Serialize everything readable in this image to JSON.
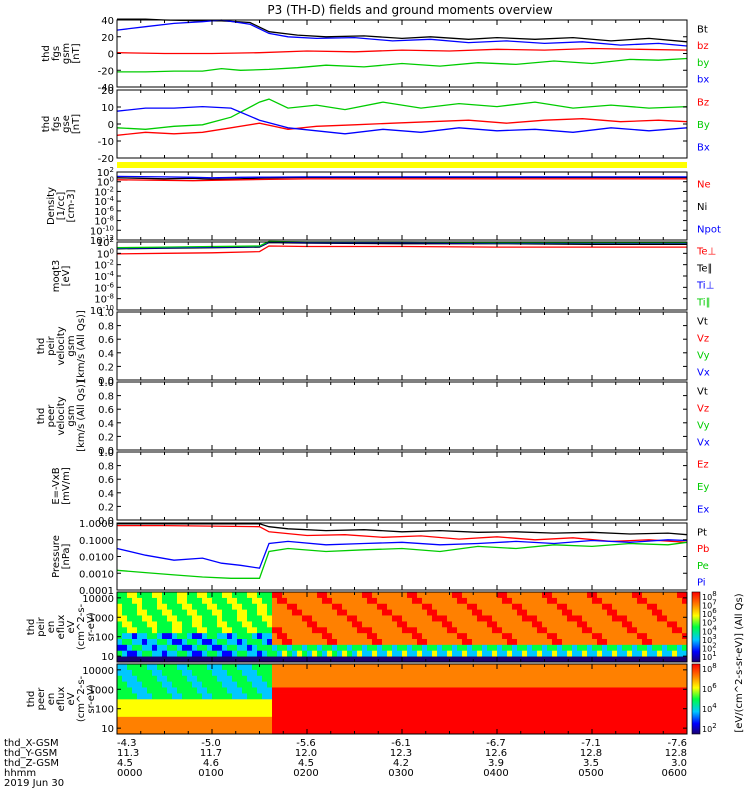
{
  "title": "P3 (TH-D) fields and ground moments overview",
  "chart_data": [
    {
      "id": "fgs_gsm_mag",
      "type": "line",
      "ylabel": [
        "thd",
        "fgs",
        "gsm",
        "[nT]"
      ],
      "ylim": [
        -40,
        40
      ],
      "yticks": [
        "40",
        "20",
        "0",
        "-20",
        "-40"
      ],
      "legend": [
        {
          "name": "Bt",
          "color": "#000000"
        },
        {
          "name": "bz",
          "color": "#ff0000"
        },
        {
          "name": "by",
          "color": "#00cc00"
        },
        {
          "name": "bx",
          "color": "#0000ff"
        }
      ],
      "series": [
        {
          "name": "Bt",
          "color": "#000000",
          "x": [
            0,
            0.3,
            0.5,
            0.9,
            1.1,
            1.4,
            1.6,
            1.9,
            2.2,
            2.6,
            3.0,
            3.3,
            3.7,
            4.0,
            4.4,
            4.8,
            5.2,
            5.6,
            6.0
          ],
          "y": [
            41,
            41,
            40,
            39,
            39,
            37,
            26,
            22,
            20,
            21,
            18,
            20,
            17,
            19,
            17,
            19,
            15,
            18,
            14
          ]
        },
        {
          "name": "bz",
          "color": "#ff0000",
          "x": [
            0,
            0.5,
            1.0,
            1.5,
            2.0,
            2.5,
            3.0,
            3.5,
            4.0,
            4.5,
            5.0,
            5.5,
            6.0
          ],
          "y": [
            1,
            0,
            0,
            1,
            3,
            2,
            4,
            3,
            5,
            4,
            6,
            5,
            4
          ]
        },
        {
          "name": "by",
          "color": "#00cc00",
          "x": [
            0,
            0.3,
            0.6,
            0.9,
            1.1,
            1.3,
            1.6,
            1.9,
            2.2,
            2.6,
            3.0,
            3.4,
            3.8,
            4.2,
            4.6,
            5.0,
            5.4,
            5.7,
            6.0
          ],
          "y": [
            -22,
            -22,
            -21,
            -21,
            -18,
            -20,
            -19,
            -17,
            -14,
            -16,
            -12,
            -15,
            -11,
            -13,
            -9,
            -12,
            -7,
            -8,
            -6
          ]
        },
        {
          "name": "bx",
          "color": "#0000ff",
          "x": [
            0,
            0.3,
            0.6,
            0.9,
            1.1,
            1.4,
            1.6,
            1.8,
            2.1,
            2.5,
            2.9,
            3.3,
            3.7,
            4.1,
            4.5,
            4.9,
            5.3,
            5.7,
            6.0
          ],
          "y": [
            28,
            32,
            36,
            38,
            40,
            35,
            24,
            20,
            18,
            19,
            15,
            17,
            13,
            15,
            12,
            14,
            10,
            12,
            9
          ]
        }
      ]
    },
    {
      "id": "fgs_gse",
      "type": "line",
      "ylabel": [
        "thd",
        "fgs",
        "gse",
        "[nT]"
      ],
      "ylim": [
        -25,
        20
      ],
      "yticks": [
        "20",
        "10",
        "0",
        "-10",
        "-20"
      ],
      "legend": [
        {
          "name": "Bz",
          "color": "#ff0000"
        },
        {
          "name": "By",
          "color": "#00cc00"
        },
        {
          "name": "Bx",
          "color": "#0000ff"
        }
      ],
      "series": [
        {
          "name": "Bz",
          "color": "#ff0000",
          "x": [
            0,
            0.3,
            0.6,
            0.9,
            1.2,
            1.5,
            1.8,
            2.1,
            2.5,
            2.9,
            3.3,
            3.7,
            4.1,
            4.5,
            4.9,
            5.3,
            5.7,
            6.0
          ],
          "y": [
            -10,
            -8,
            -9,
            -8,
            -5,
            -2,
            -6,
            -4,
            -3,
            -2,
            -1,
            0,
            -2,
            0,
            1,
            -1,
            0,
            -1
          ]
        },
        {
          "name": "By",
          "color": "#00cc00",
          "x": [
            0,
            0.3,
            0.6,
            0.9,
            1.2,
            1.5,
            1.6,
            1.8,
            2.1,
            2.4,
            2.8,
            3.2,
            3.6,
            4.0,
            4.4,
            4.8,
            5.2,
            5.6,
            6.0
          ],
          "y": [
            -5,
            -6,
            -4,
            -3,
            2,
            12,
            14,
            8,
            10,
            7,
            12,
            8,
            11,
            9,
            12,
            8,
            10,
            8,
            9
          ]
        },
        {
          "name": "Bx",
          "color": "#0000ff",
          "x": [
            0,
            0.3,
            0.6,
            0.9,
            1.2,
            1.5,
            1.8,
            2.1,
            2.4,
            2.8,
            3.2,
            3.6,
            4.0,
            4.4,
            4.8,
            5.2,
            5.6,
            6.0
          ],
          "y": [
            6,
            8,
            8,
            9,
            8,
            0,
            -5,
            -7,
            -9,
            -6,
            -8,
            -5,
            -7,
            -6,
            -8,
            -5,
            -7,
            -5
          ]
        }
      ]
    },
    {
      "id": "density",
      "type": "line",
      "ylabel": [
        "Density",
        "[1/cc]",
        "[cm-3]"
      ],
      "log": true,
      "yticks": [
        "10^2",
        "10^0",
        "10^-2",
        "10^-4",
        "10^-6",
        "10^-8",
        "10^-10",
        "10^-12"
      ],
      "legend": [
        {
          "name": "Ne",
          "color": "#ff0000"
        },
        {
          "name": "Ni",
          "color": "#000000"
        },
        {
          "name": "Npot",
          "color": "#0000ff"
        }
      ],
      "series": [
        {
          "name": "Ni",
          "color": "#000000",
          "x": [
            0,
            0.5,
            0.8,
            1.0,
            1.3,
            1.6,
            2.0,
            3.0,
            4.0,
            5.0,
            6.0
          ],
          "y": [
            0.8,
            0.6,
            0.7,
            0.5,
            0.6,
            0.8,
            0.9,
            0.9,
            0.9,
            0.9,
            0.9
          ]
        },
        {
          "name": "Ne",
          "color": "#ff0000",
          "x": [
            0,
            0.5,
            0.8,
            1.0,
            1.3,
            1.6,
            2.0,
            3.0,
            4.0,
            5.0,
            6.0
          ],
          "y": [
            0.4,
            0.3,
            0.2,
            0.3,
            0.4,
            0.5,
            0.6,
            0.6,
            0.6,
            0.6,
            0.6
          ]
        },
        {
          "name": "Npot",
          "color": "#0000ff",
          "x": [
            0,
            0.5,
            0.8,
            1.0,
            1.3,
            1.6,
            2.0,
            3.0,
            4.0,
            5.0,
            6.0
          ],
          "y": [
            1.1,
            1.0,
            0.9,
            0.8,
            0.9,
            0.95,
            1.0,
            1.0,
            1.0,
            1.0,
            1.0
          ]
        }
      ]
    },
    {
      "id": "temperature",
      "type": "line",
      "ylabel": [
        "moqt3",
        "[eV]"
      ],
      "log": true,
      "yticks": [
        "10^2",
        "10^0",
        "10^-2",
        "10^-4",
        "10^-6",
        "10^-8",
        "10^-10"
      ],
      "legend": [
        {
          "name": "Te⊥",
          "color": "#ff0000"
        },
        {
          "name": "Te∥",
          "color": "#000000"
        },
        {
          "name": "Ti⊥",
          "color": "#0000ff"
        },
        {
          "name": "Ti∥",
          "color": "#00cc00"
        }
      ],
      "series": [
        {
          "name": "Te∥",
          "color": "#000000",
          "x": [
            0,
            0.5,
            1.0,
            1.5,
            1.6,
            2.0,
            3.0,
            4.0,
            5.0,
            6.0
          ],
          "y": [
            0.8,
            0.9,
            1.0,
            1.1,
            1.9,
            1.8,
            1.7,
            1.7,
            1.6,
            1.6
          ]
        },
        {
          "name": "Te⊥",
          "color": "#ff0000",
          "x": [
            0,
            0.5,
            1.0,
            1.5,
            1.6,
            2.0,
            3.0,
            4.0,
            5.0,
            6.0
          ],
          "y": [
            -0.1,
            0.0,
            0.1,
            0.3,
            1.3,
            1.2,
            1.2,
            1.1,
            1.1,
            1.1
          ]
        },
        {
          "name": "Ti⊥",
          "color": "#0000ff",
          "x": [
            0,
            0.5,
            1.0,
            1.5,
            1.6,
            2.0,
            3.0,
            4.0,
            5.0,
            6.0
          ],
          "y": [
            0.9,
            1.0,
            1.1,
            1.2,
            2.0,
            1.9,
            1.9,
            1.8,
            1.8,
            1.8
          ]
        },
        {
          "name": "Ti∥",
          "color": "#00cc00",
          "x": [
            0,
            0.5,
            1.0,
            1.5,
            1.6,
            2.0,
            3.0,
            4.0,
            5.0,
            6.0
          ],
          "y": [
            1.0,
            1.1,
            1.2,
            1.3,
            2.1,
            2.0,
            2.0,
            1.9,
            1.9,
            1.9
          ]
        }
      ]
    },
    {
      "id": "peir_velocity",
      "type": "line",
      "ylabel": [
        "thd",
        "peir",
        "velocity",
        "gsm",
        "[km/s (All Qs)]"
      ],
      "ylim": [
        0,
        1
      ],
      "yticks": [
        "1.0",
        "0.8",
        "0.6",
        "0.4",
        "0.2",
        "0.0"
      ],
      "legend": [
        {
          "name": "Vt",
          "color": "#000000"
        },
        {
          "name": "Vz",
          "color": "#ff0000"
        },
        {
          "name": "Vy",
          "color": "#00cc00"
        },
        {
          "name": "Vx",
          "color": "#0000ff"
        }
      ],
      "series": []
    },
    {
      "id": "peer_velocity",
      "type": "line",
      "ylabel": [
        "thd",
        "peer",
        "velocity",
        "gsm",
        "[km/s (All Qs)]"
      ],
      "ylim": [
        0,
        1
      ],
      "yticks": [
        "1.0",
        "0.8",
        "0.6",
        "0.4",
        "0.2",
        "0.0"
      ],
      "legend": [
        {
          "name": "Vt",
          "color": "#000000"
        },
        {
          "name": "Vz",
          "color": "#ff0000"
        },
        {
          "name": "Vy",
          "color": "#00cc00"
        },
        {
          "name": "Vx",
          "color": "#0000ff"
        }
      ],
      "series": []
    },
    {
      "id": "efield",
      "type": "line",
      "ylabel": [
        "E=-VxB",
        "[mV/m]"
      ],
      "ylim": [
        0,
        1
      ],
      "yticks": [
        "1.0",
        "0.8",
        "0.6",
        "0.4",
        "0.2",
        "0.0"
      ],
      "legend": [
        {
          "name": "Ez",
          "color": "#ff0000"
        },
        {
          "name": "Ey",
          "color": "#00cc00"
        },
        {
          "name": "Ex",
          "color": "#0000ff"
        }
      ],
      "series": []
    },
    {
      "id": "pressure",
      "type": "line",
      "ylabel": [
        "Pressure",
        "[nPa]"
      ],
      "log": true,
      "ylim": [
        0.0001,
        1.0
      ],
      "yticks": [
        "1.0000",
        "0.1000",
        "0.0100",
        "0.0010",
        "0.0001"
      ],
      "legend": [
        {
          "name": "Pt",
          "color": "#000000"
        },
        {
          "name": "Pb",
          "color": "#ff0000"
        },
        {
          "name": "Pe",
          "color": "#00cc00"
        },
        {
          "name": "Pi",
          "color": "#0000ff"
        }
      ],
      "series": [
        {
          "name": "Pt",
          "color": "#000000",
          "x": [
            0,
            0.5,
            1.0,
            1.5,
            1.6,
            1.8,
            2.2,
            2.6,
            3.0,
            3.4,
            3.8,
            4.2,
            4.6,
            5.0,
            5.4,
            5.8,
            6.0
          ],
          "y": [
            0.9,
            0.9,
            0.9,
            0.9,
            0.6,
            0.45,
            0.35,
            0.4,
            0.3,
            0.35,
            0.28,
            0.3,
            0.25,
            0.28,
            0.22,
            0.25,
            0.2
          ]
        },
        {
          "name": "Pb",
          "color": "#ff0000",
          "x": [
            0,
            0.5,
            1.0,
            1.5,
            1.6,
            2.0,
            2.4,
            2.8,
            3.2,
            3.6,
            4.0,
            4.4,
            4.8,
            5.2,
            5.6,
            6.0
          ],
          "y": [
            0.7,
            0.7,
            0.65,
            0.6,
            0.3,
            0.18,
            0.2,
            0.14,
            0.17,
            0.11,
            0.15,
            0.1,
            0.13,
            0.08,
            0.1,
            0.07
          ]
        },
        {
          "name": "Pe",
          "color": "#00cc00",
          "x": [
            0,
            0.3,
            0.6,
            0.9,
            1.2,
            1.5,
            1.6,
            1.8,
            2.2,
            2.6,
            3.0,
            3.4,
            3.8,
            4.2,
            4.6,
            5.0,
            5.4,
            5.8,
            6.0
          ],
          "y": [
            0.0015,
            0.0011,
            0.0008,
            0.0006,
            0.0005,
            0.0005,
            0.02,
            0.03,
            0.02,
            0.025,
            0.03,
            0.02,
            0.04,
            0.03,
            0.05,
            0.04,
            0.06,
            0.05,
            0.07
          ]
        },
        {
          "name": "Pi",
          "color": "#0000ff",
          "x": [
            0,
            0.3,
            0.6,
            0.9,
            1.1,
            1.3,
            1.5,
            1.6,
            1.8,
            2.2,
            2.6,
            3.0,
            3.4,
            3.8,
            4.2,
            4.6,
            5.0,
            5.4,
            5.8,
            6.0
          ],
          "y": [
            0.03,
            0.012,
            0.006,
            0.008,
            0.004,
            0.003,
            0.002,
            0.06,
            0.08,
            0.05,
            0.06,
            0.07,
            0.05,
            0.06,
            0.08,
            0.06,
            0.09,
            0.07,
            0.1,
            0.09
          ]
        }
      ]
    },
    {
      "id": "peir_spectrogram",
      "type": "heatmap",
      "ylabel": [
        "thd",
        "peir",
        "en",
        "eflux",
        "eV",
        "(cm^2-s-",
        "sr-eV)"
      ],
      "log": true,
      "ylim": [
        5,
        20000
      ],
      "yticks": [
        "10000",
        "1000",
        "100",
        "10"
      ],
      "colorbar_label": "[eV/(cm^2-s-sr-eV)] (All Qs)",
      "colorbar_ticks": [
        "10^8",
        "10^7",
        "10^6",
        "10^5",
        "10^4",
        "10^3",
        "10^2",
        "10^1"
      ]
    },
    {
      "id": "peer_spectrogram",
      "type": "heatmap",
      "ylabel": [
        "thd",
        "peer",
        "en",
        "eflux",
        "eV",
        "(cm^2-s-",
        "sr-eV)"
      ],
      "log": true,
      "ylim": [
        5,
        20000
      ],
      "yticks": [
        "10000",
        "1000",
        "100",
        "10"
      ],
      "colorbar_label": "[eV/(cm^2-s-sr-eV)] (All Qs)",
      "colorbar_ticks": [
        "10^8",
        "10^6",
        "10^4",
        "10^2"
      ]
    }
  ],
  "axis_rows": [
    {
      "label": "thd_X-GSM",
      "values": [
        "-4.3",
        "-5.0",
        "-5.6",
        "-6.1",
        "-6.7",
        "-7.1",
        "-7.6"
      ]
    },
    {
      "label": "thd_Y-GSM",
      "values": [
        "11.3",
        "11.7",
        "12.0",
        "12.3",
        "12.6",
        "12.8",
        "12.8"
      ]
    },
    {
      "label": "thd_Z-GSM",
      "values": [
        "4.5",
        "4.6",
        "4.5",
        "4.2",
        "3.9",
        "3.5",
        "3.0"
      ]
    },
    {
      "label": "hhmm",
      "values": [
        "0000",
        "0100",
        "0200",
        "0300",
        "0400",
        "0500",
        "0600"
      ]
    }
  ],
  "date": "2019 Jun 30"
}
